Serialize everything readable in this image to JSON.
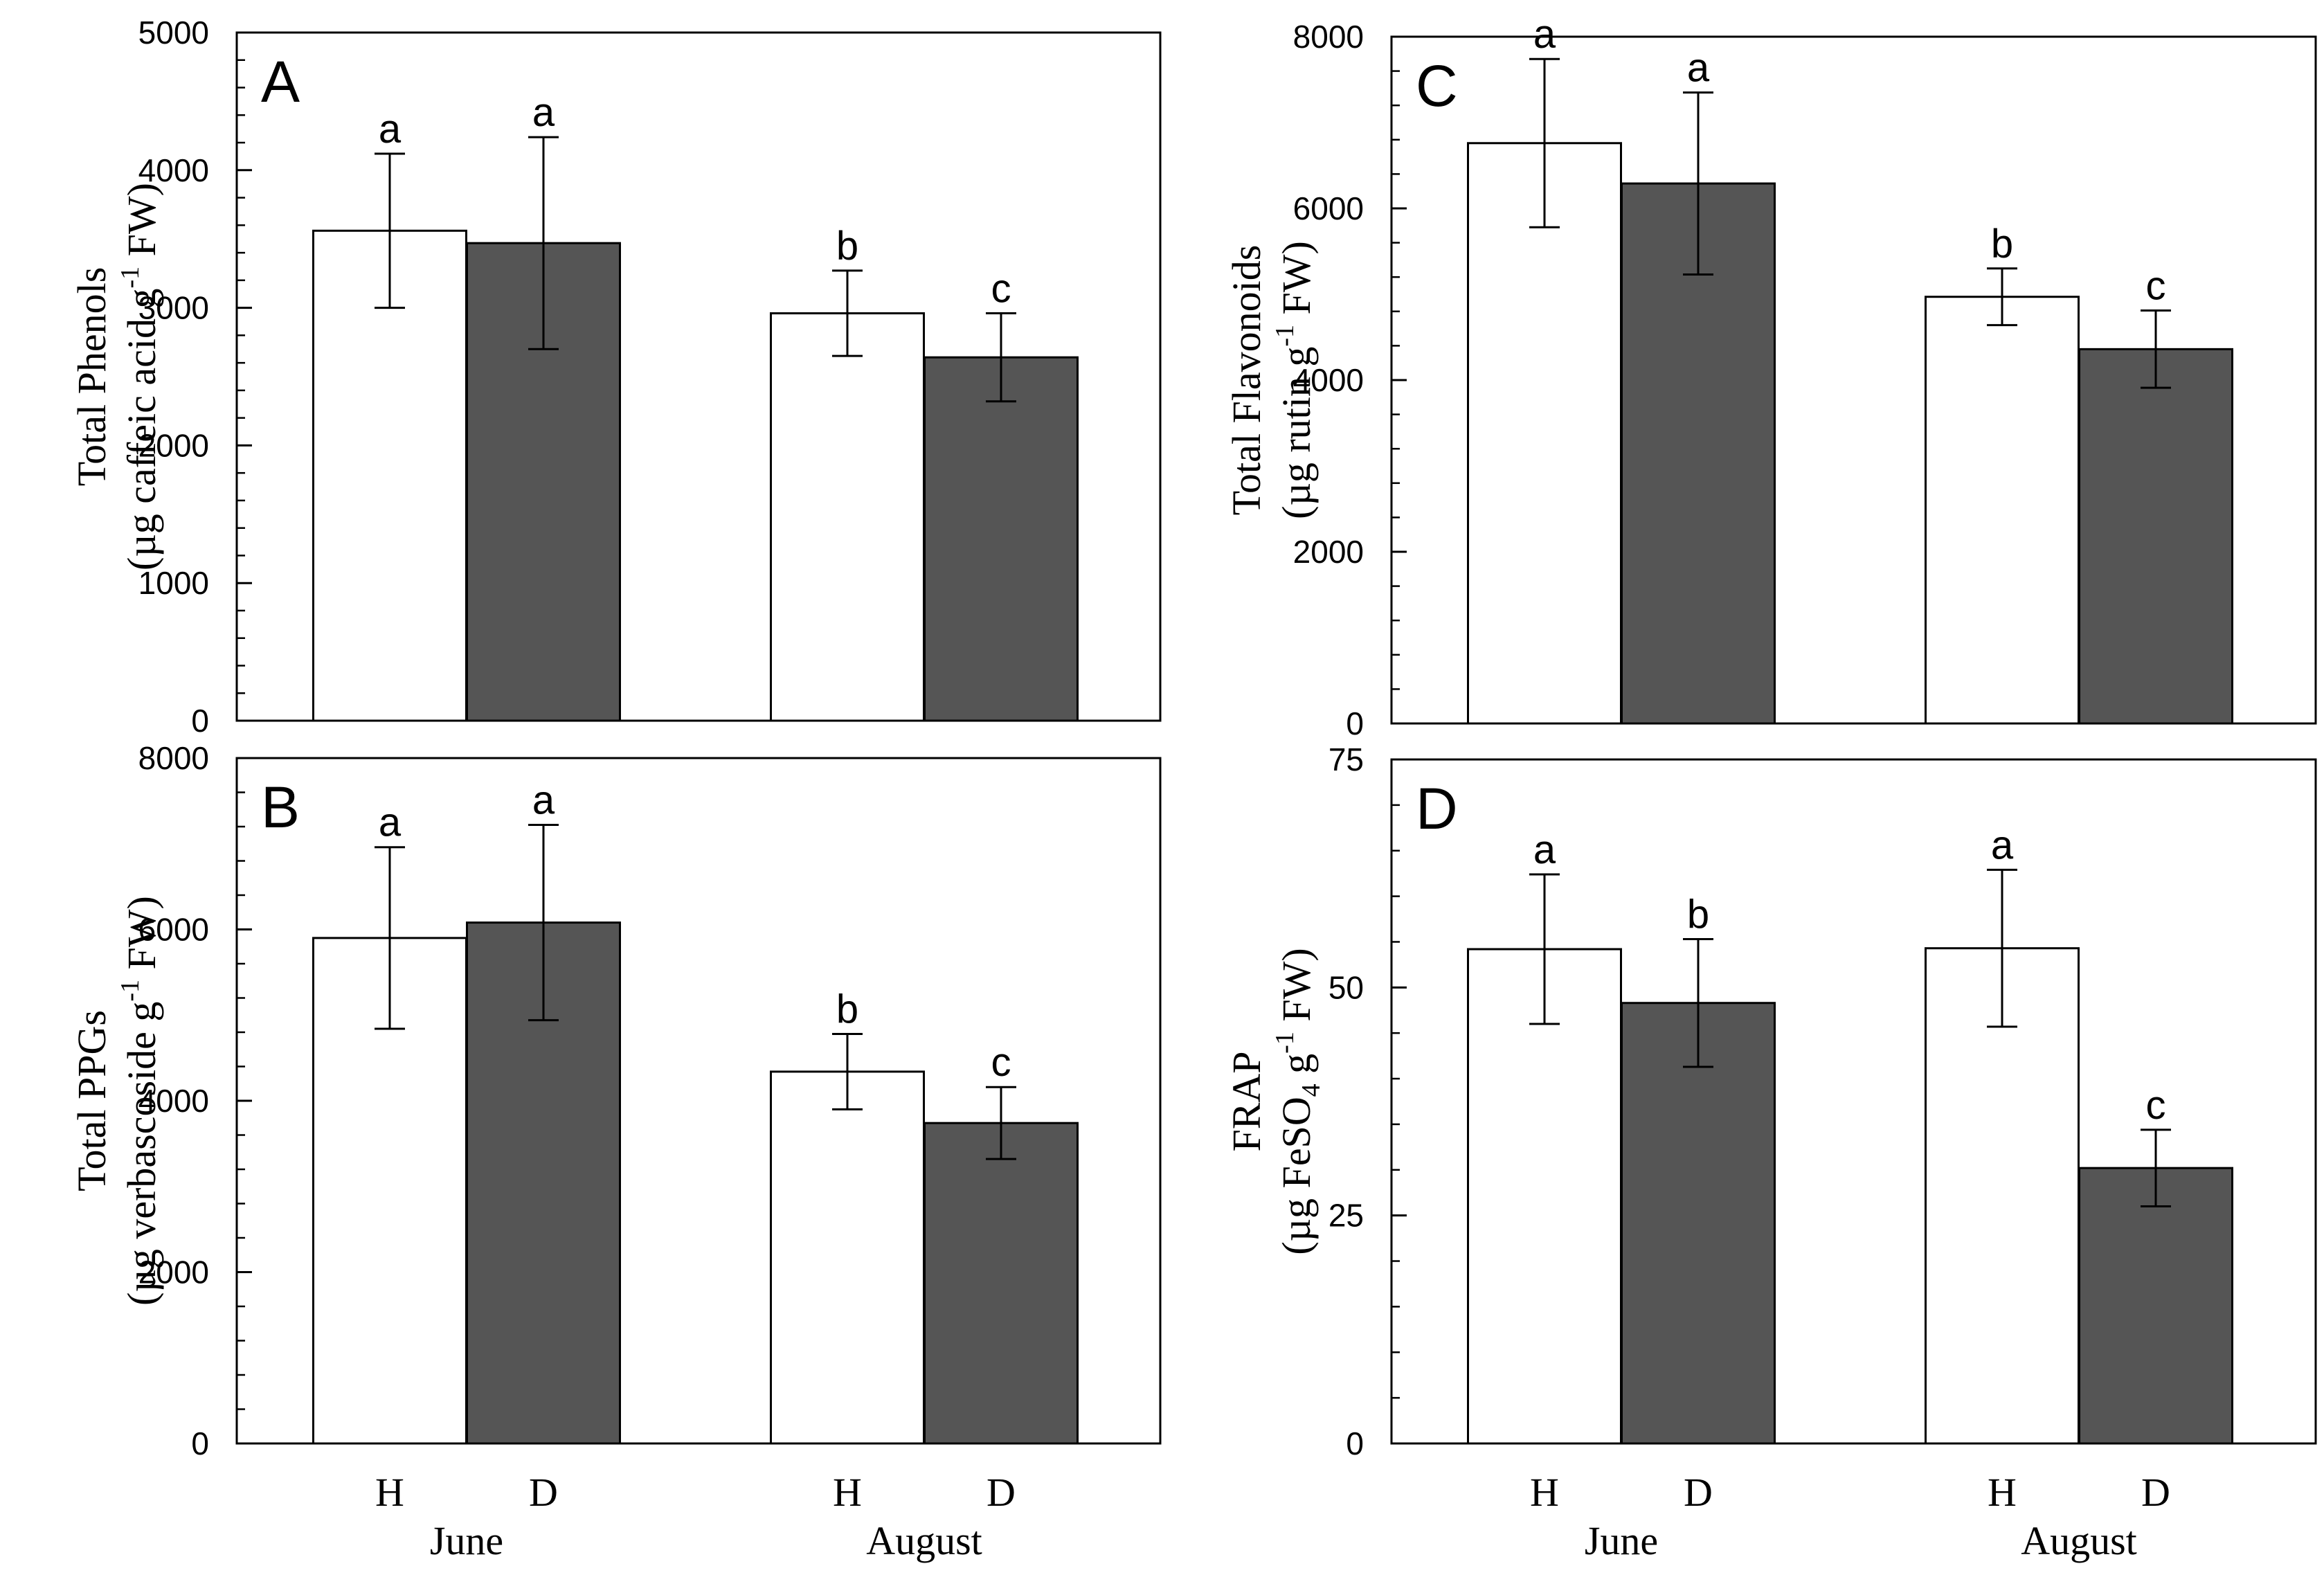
{
  "colors": {
    "healthy_fill": "#ffffff",
    "declining_fill": "#555555",
    "outline": "#000000"
  },
  "chart_data": [
    {
      "id": "A",
      "type": "bar",
      "panel_label": "A",
      "ylabel_line1": "Total Phenols",
      "ylabel_line2": "(µg caffeic acid g",
      "ylabel_sup": "-1",
      "ylabel_tail": " FW)",
      "ylim": [
        0,
        5000
      ],
      "yticks": [
        0,
        1000,
        2000,
        3000,
        4000,
        5000
      ],
      "groups": [
        "June",
        "August"
      ],
      "bar_labels": [
        "H",
        "D",
        "H",
        "D"
      ],
      "values": [
        3560,
        3470,
        2960,
        2640
      ],
      "errors": [
        560,
        770,
        310,
        320
      ],
      "significance": [
        "a",
        "a",
        "b",
        "c"
      ],
      "grid": false
    },
    {
      "id": "B",
      "type": "bar",
      "panel_label": "B",
      "ylabel_line1": "Total PPGs",
      "ylabel_line2": "(µg verbascoside g",
      "ylabel_sup": "-1",
      "ylabel_tail": " FW)",
      "ylim": [
        0,
        8000
      ],
      "yticks": [
        0,
        2000,
        4000,
        6000,
        8000
      ],
      "groups": [
        "June",
        "August"
      ],
      "bar_labels": [
        "H",
        "D",
        "H",
        "D"
      ],
      "values": [
        5900,
        6080,
        4340,
        3740
      ],
      "errors": [
        1060,
        1140,
        440,
        420
      ],
      "significance": [
        "a",
        "a",
        "b",
        "c"
      ],
      "grid": false
    },
    {
      "id": "C",
      "type": "bar",
      "panel_label": "C",
      "ylabel_line1": "Total Flavonoids",
      "ylabel_line2": "(µg rutin g",
      "ylabel_sup": "-1",
      "ylabel_tail": " FW)",
      "ylim": [
        0,
        8000
      ],
      "yticks": [
        0,
        2000,
        4000,
        6000,
        8000
      ],
      "groups": [
        "June",
        "August"
      ],
      "bar_labels": [
        "H",
        "D",
        "H",
        "D"
      ],
      "values": [
        6760,
        6290,
        4970,
        4360
      ],
      "errors": [
        980,
        1060,
        330,
        450
      ],
      "significance": [
        "a",
        "a",
        "b",
        "c"
      ],
      "grid": false
    },
    {
      "id": "D",
      "type": "bar",
      "panel_label": "D",
      "ylabel_line1": "FRAP",
      "ylabel_line2": "(µg FeSO",
      "ylabel_sub": "4",
      "ylabel_mid": " g",
      "ylabel_sup": "-1",
      "ylabel_tail": " FW)",
      "ylim": [
        0,
        75
      ],
      "yticks": [
        0,
        25,
        50,
        75
      ],
      "groups": [
        "June",
        "August"
      ],
      "bar_labels": [
        "H",
        "D",
        "H",
        "D"
      ],
      "values": [
        54.2,
        48.3,
        54.3,
        30.2
      ],
      "errors": [
        8.2,
        7.0,
        8.6,
        4.2
      ],
      "significance": [
        "a",
        "b",
        "a",
        "c"
      ],
      "grid": false
    }
  ]
}
